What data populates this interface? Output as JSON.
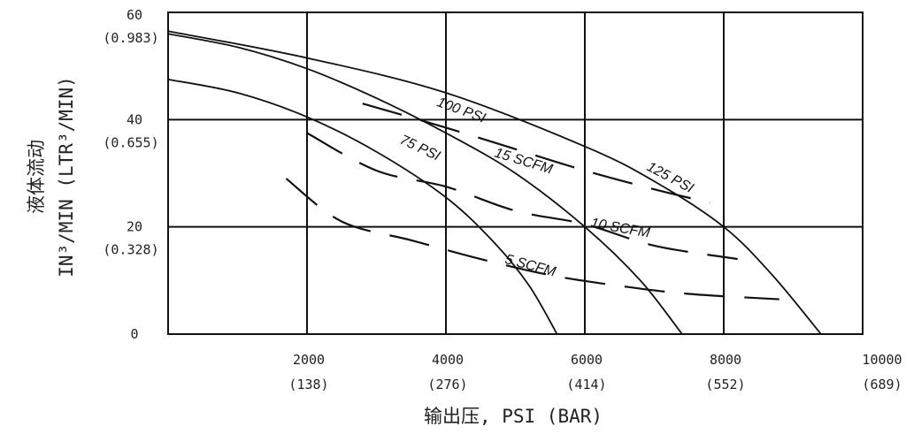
{
  "chart_data": {
    "type": "line",
    "xlabel": "输出压, PSI (BAR)",
    "ylabel_line1": "液体流动",
    "ylabel_line2": "IN³/MIN (LTR³/MIN)",
    "xlim": [
      0,
      10000
    ],
    "ylim": [
      0,
      60
    ],
    "grid": true,
    "x_ticks": [
      {
        "value": 2000,
        "label": "2000",
        "sub": "(138)"
      },
      {
        "value": 4000,
        "label": "4000",
        "sub": "(276)"
      },
      {
        "value": 6000,
        "label": "6000",
        "sub": "(414)"
      },
      {
        "value": 8000,
        "label": "8000",
        "sub": "(552)"
      },
      {
        "value": 10000,
        "label": "10000",
        "sub": "(689)"
      }
    ],
    "y_ticks": [
      {
        "value": 60,
        "label": "60",
        "sub": "(0.983)"
      },
      {
        "value": 40,
        "label": "40",
        "sub": "(0.655)"
      },
      {
        "value": 20,
        "label": "20",
        "sub": "(0.328)"
      },
      {
        "value": 0,
        "label": "0",
        "sub": ""
      }
    ],
    "series": [
      {
        "name": "100 PSI",
        "style": "solid",
        "x": [
          0,
          1000,
          2000,
          3000,
          4000,
          5000,
          6000,
          6800,
          7400
        ],
        "y": [
          56,
          53.5,
          49.5,
          44,
          37.5,
          30,
          20,
          10,
          0
        ]
      },
      {
        "name": "75 PSI",
        "style": "solid",
        "x": [
          0,
          1000,
          2000,
          3000,
          4000,
          4700,
          5200,
          5600
        ],
        "y": [
          47.5,
          45,
          40.5,
          34,
          25.5,
          17,
          9,
          0
        ]
      },
      {
        "name": "125 PSI",
        "style": "solid",
        "x": [
          0,
          2000,
          4000,
          6000,
          7000,
          8000,
          8700,
          9400
        ],
        "y": [
          56.5,
          51.5,
          45,
          35,
          28.5,
          20,
          11,
          0
        ]
      },
      {
        "name": "15 SCFM",
        "style": "dashed",
        "x": [
          2800,
          4000,
          5000,
          6000,
          7000,
          7800
        ],
        "y": [
          43,
          38.5,
          34.5,
          30.5,
          27,
          24.5
        ]
      },
      {
        "name": "10 SCFM",
        "style": "dashed",
        "x": [
          2000,
          3000,
          4000,
          5000,
          6000,
          7000,
          8200
        ],
        "y": [
          37.5,
          30.5,
          27.5,
          23,
          20.5,
          16.5,
          14
        ]
      },
      {
        "name": "5 SCFM",
        "style": "dashed",
        "x": [
          1700,
          2500,
          3500,
          4500,
          5500,
          6500,
          7500,
          8800
        ],
        "y": [
          29,
          21,
          17.5,
          14,
          11,
          9,
          7.5,
          6.5
        ]
      }
    ],
    "curve_labels": [
      {
        "text": "100 PSI",
        "x": 4200,
        "y": 41,
        "angle": 20
      },
      {
        "text": "75 PSI",
        "x": 3600,
        "y": 34,
        "angle": 25
      },
      {
        "text": "15 SCFM",
        "x": 5100,
        "y": 31.5,
        "angle": 17
      },
      {
        "text": "125 PSI",
        "x": 7200,
        "y": 28.5,
        "angle": 28
      },
      {
        "text": "10 SCFM",
        "x": 6500,
        "y": 19,
        "angle": 10
      },
      {
        "text": "5 SCFM",
        "x": 5200,
        "y": 12,
        "angle": 15
      }
    ]
  }
}
